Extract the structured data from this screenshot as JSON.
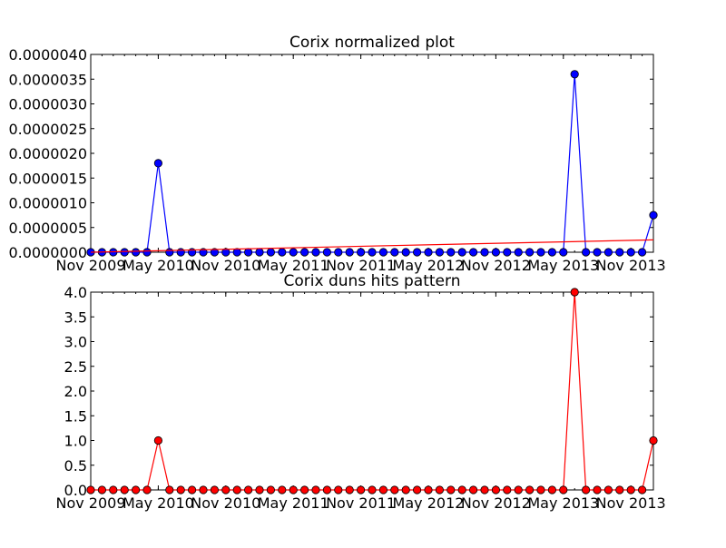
{
  "chart_data": [
    {
      "type": "line",
      "title": "Corix normalized plot",
      "xlabel": "",
      "ylabel": "",
      "x_ticks": [
        "Nov 2009",
        "May 2010",
        "Nov 2010",
        "May 2011",
        "Nov 2011",
        "May 2012",
        "Nov 2012",
        "May 2013",
        "Nov 2013"
      ],
      "y_ticks": [
        "0.0000000",
        "0.0000005",
        "0.0000010",
        "0.0000015",
        "0.0000020",
        "0.0000025",
        "0.0000030",
        "0.0000035",
        "0.0000040"
      ],
      "ylim": [
        0,
        4e-06
      ],
      "x_start": "2009-11",
      "grid": false,
      "series": [
        {
          "color": "#0000ff",
          "style": "line-with-markers",
          "values": [
            0,
            0,
            0,
            0,
            0,
            0,
            1.8e-06,
            0,
            0,
            0,
            0,
            0,
            0,
            0,
            0,
            0,
            0,
            0,
            0,
            0,
            0,
            0,
            0,
            0,
            0,
            0,
            0,
            0,
            0,
            0,
            0,
            0,
            0,
            0,
            0,
            0,
            0,
            0,
            0,
            0,
            0,
            0,
            0,
            3.6e-06,
            0,
            0,
            0,
            0,
            0,
            0,
            7.5e-07
          ]
        },
        {
          "color": "#ff0000",
          "style": "trend-line",
          "values": [
            0,
            2.5e-07
          ]
        }
      ]
    },
    {
      "type": "line",
      "title": "Corix duns hits pattern",
      "xlabel": "",
      "ylabel": "",
      "x_ticks": [
        "Nov 2009",
        "May 2010",
        "Nov 2010",
        "May 2011",
        "Nov 2011",
        "May 2012",
        "Nov 2012",
        "May 2013",
        "Nov 2013"
      ],
      "y_ticks": [
        "0.0",
        "0.5",
        "1.0",
        "1.5",
        "2.0",
        "2.5",
        "3.0",
        "3.5",
        "4.0"
      ],
      "ylim": [
        0,
        4
      ],
      "x_start": "2009-11",
      "grid": false,
      "series": [
        {
          "color": "#ff0000",
          "style": "line-with-markers",
          "values": [
            0,
            0,
            0,
            0,
            0,
            0,
            1,
            0,
            0,
            0,
            0,
            0,
            0,
            0,
            0,
            0,
            0,
            0,
            0,
            0,
            0,
            0,
            0,
            0,
            0,
            0,
            0,
            0,
            0,
            0,
            0,
            0,
            0,
            0,
            0,
            0,
            0,
            0,
            0,
            0,
            0,
            0,
            0,
            4,
            0,
            0,
            0,
            0,
            0,
            0,
            1
          ]
        }
      ]
    }
  ]
}
